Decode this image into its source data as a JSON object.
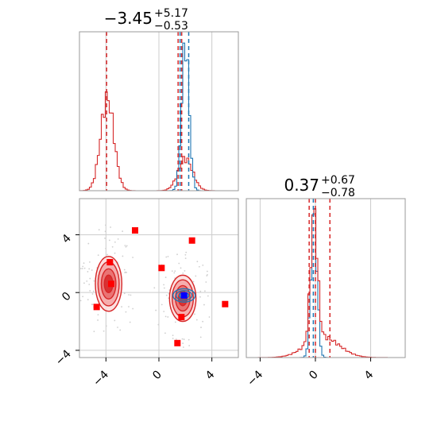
{
  "chart_data": [
    {
      "type": "histogram",
      "panel": "top-left",
      "title": {
        "value": "−3.45",
        "plus": "+5.17",
        "minus": "−0.53"
      },
      "xlim": [
        -6,
        6
      ],
      "grid": true,
      "series": [
        {
          "color": "#d62728",
          "peaks": [
            {
              "center": -3.9,
              "sd": 0.5,
              "amp": 0.58
            },
            {
              "center": 2.0,
              "sd": 0.55,
              "amp": 0.2
            }
          ]
        },
        {
          "color": "#1f77b4",
          "peaks": [
            {
              "center": 2.0,
              "sd": 0.28,
              "amp": 0.93
            }
          ]
        }
      ],
      "vlines": [
        {
          "x": -3.95,
          "color": "#d62728"
        },
        {
          "x": 1.45,
          "color": "#d62728"
        },
        {
          "x": 1.72,
          "color": "#d62728"
        },
        {
          "x": 1.6,
          "color": "#1f77b4"
        },
        {
          "x": 2.25,
          "color": "#1f77b4"
        }
      ]
    },
    {
      "type": "scatter",
      "panel": "bottom-left",
      "xlim": [
        -6,
        6
      ],
      "ylim": [
        -4.5,
        6.5
      ],
      "xticks": [
        "−4",
        "0",
        "4"
      ],
      "yticks": [
        "−4",
        "0",
        "4"
      ],
      "grid": true,
      "red_markers": [
        [
          -1.8,
          4.3
        ],
        [
          -3.7,
          2.1
        ],
        [
          2.5,
          3.6
        ],
        [
          0.2,
          1.7
        ],
        [
          -3.6,
          0.6
        ],
        [
          -4.7,
          -1.0
        ],
        [
          1.7,
          -1.7
        ],
        [
          5.0,
          -0.8
        ],
        [
          1.4,
          -3.5
        ]
      ],
      "blue_marker": [
        1.9,
        -0.2
      ],
      "clusters": [
        {
          "center": [
            -3.8,
            0.6
          ],
          "rx": 1.0,
          "ry": 1.9
        },
        {
          "center": [
            1.8,
            -0.4
          ],
          "rx": 1.0,
          "ry": 1.6
        }
      ]
    },
    {
      "type": "histogram",
      "panel": "bottom-right",
      "title": {
        "value": "0.37",
        "plus": "+0.67",
        "minus": "−0.78"
      },
      "xlim": [
        -5,
        6.5
      ],
      "xticks": [
        "−4",
        "0",
        "4"
      ],
      "grid": true,
      "series": [
        {
          "color": "#1f77b4",
          "peaks": [
            {
              "center": -0.1,
              "sd": 0.22,
              "amp": 0.93
            }
          ]
        },
        {
          "color": "#d62728",
          "peaks": [
            {
              "center": -0.1,
              "sd": 0.25,
              "amp": 0.8
            },
            {
              "center": 0.5,
              "sd": 1.2,
              "amp": 0.13
            }
          ]
        }
      ],
      "vlines": [
        {
          "x": -0.45,
          "color": "#d62728"
        },
        {
          "x": 0.0,
          "color": "#d62728"
        },
        {
          "x": 1.05,
          "color": "#d62728"
        },
        {
          "x": -0.15,
          "color": "#1f77b4"
        }
      ]
    }
  ]
}
